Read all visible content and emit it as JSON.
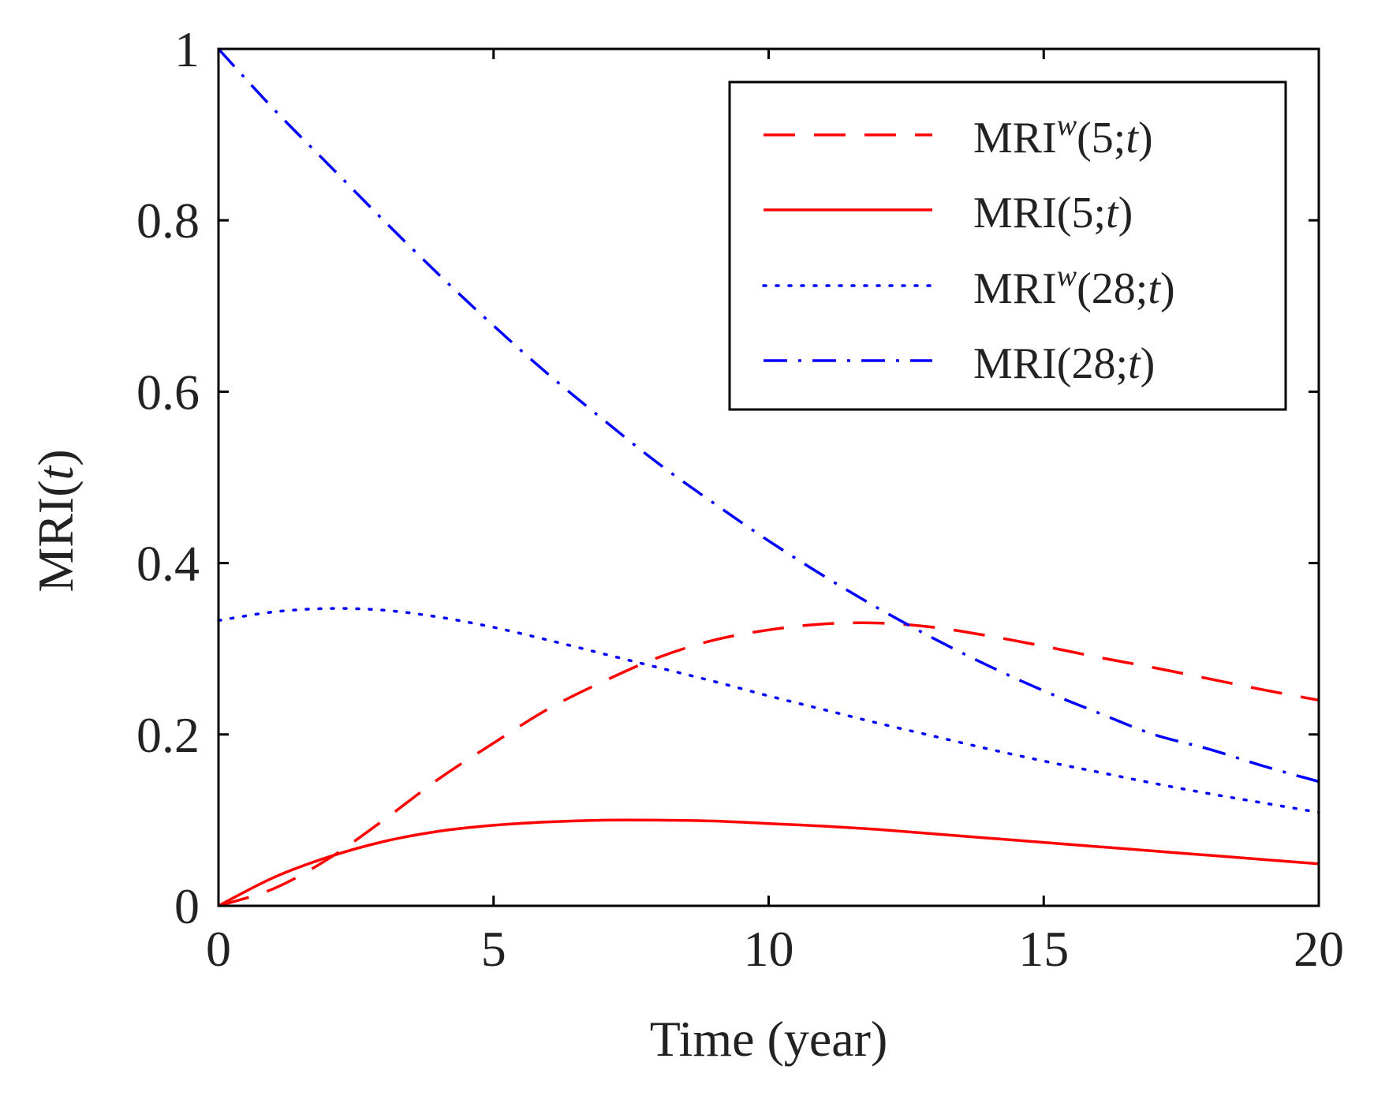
{
  "chart_data": {
    "type": "line",
    "xlabel": "Time (year)",
    "ylabel": {
      "prefix": "MRI(",
      "var": "t",
      "suffix": ")"
    },
    "xlim": [
      0,
      20
    ],
    "ylim": [
      0,
      1
    ],
    "xticks": [
      0,
      5,
      10,
      15,
      20
    ],
    "yticks": [
      0,
      0.2,
      0.4,
      0.6,
      0.8,
      1
    ],
    "ytick_labels": [
      "0",
      "0.2",
      "0.4",
      "0.6",
      "0.8",
      "1"
    ],
    "grid": false,
    "legend_position": "top-right",
    "series": [
      {
        "name": "MRI^w(5;t)",
        "legend": {
          "base": "MRI",
          "sup": "w",
          "args": "(5;",
          "var": "t",
          "close": ")"
        },
        "color": "#ff0000",
        "style": "dashed",
        "x": [
          0,
          1,
          2,
          3,
          4,
          5,
          6,
          7,
          8,
          9,
          10,
          11,
          12,
          13,
          14,
          15,
          16,
          17,
          18,
          19,
          20
        ],
        "y": [
          0.0,
          0.02,
          0.055,
          0.1,
          0.148,
          0.19,
          0.23,
          0.262,
          0.29,
          0.31,
          0.322,
          0.329,
          0.33,
          0.325,
          0.315,
          0.303,
          0.29,
          0.278,
          0.265,
          0.252,
          0.24
        ]
      },
      {
        "name": "MRI(5;t)",
        "legend": {
          "base": "MRI",
          "sup": "",
          "args": "(5;",
          "var": "t",
          "close": ")"
        },
        "color": "#ff0000",
        "style": "solid",
        "x": [
          0,
          1,
          2,
          3,
          4,
          5,
          6,
          7,
          8,
          9,
          10,
          11,
          12,
          13,
          14,
          15,
          16,
          17,
          18,
          19,
          20
        ],
        "y": [
          0.0,
          0.033,
          0.057,
          0.075,
          0.087,
          0.094,
          0.098,
          0.1,
          0.1,
          0.099,
          0.096,
          0.093,
          0.089,
          0.084,
          0.079,
          0.074,
          0.069,
          0.064,
          0.059,
          0.054,
          0.049
        ]
      },
      {
        "name": "MRI^w(28;t)",
        "legend": {
          "base": "MRI",
          "sup": "w",
          "args": "(28;",
          "var": "t",
          "close": ")"
        },
        "color": "#0000ff",
        "style": "dotted",
        "x": [
          0,
          1,
          2,
          3,
          4,
          5,
          6,
          7,
          8,
          9,
          10,
          11,
          12,
          13,
          14,
          15,
          16,
          17,
          18,
          19,
          20
        ],
        "y": [
          0.333,
          0.343,
          0.347,
          0.345,
          0.337,
          0.325,
          0.31,
          0.294,
          0.278,
          0.262,
          0.245,
          0.229,
          0.213,
          0.198,
          0.183,
          0.169,
          0.156,
          0.143,
          0.131,
          0.12,
          0.109
        ]
      },
      {
        "name": "MRI(28;t)",
        "legend": {
          "base": "MRI",
          "sup": "",
          "args": "(28;",
          "var": "t",
          "close": ")"
        },
        "color": "#0000ff",
        "style": "dashdot",
        "x": [
          0,
          1,
          2,
          3,
          4,
          5,
          6,
          7,
          8,
          9,
          10,
          11,
          12,
          13,
          14,
          15,
          16,
          17,
          18,
          19,
          20
        ],
        "y": [
          1.0,
          0.93,
          0.865,
          0.8,
          0.737,
          0.677,
          0.62,
          0.567,
          0.516,
          0.47,
          0.426,
          0.385,
          0.347,
          0.312,
          0.28,
          0.251,
          0.225,
          0.2,
          0.183,
          0.163,
          0.145
        ]
      }
    ]
  }
}
